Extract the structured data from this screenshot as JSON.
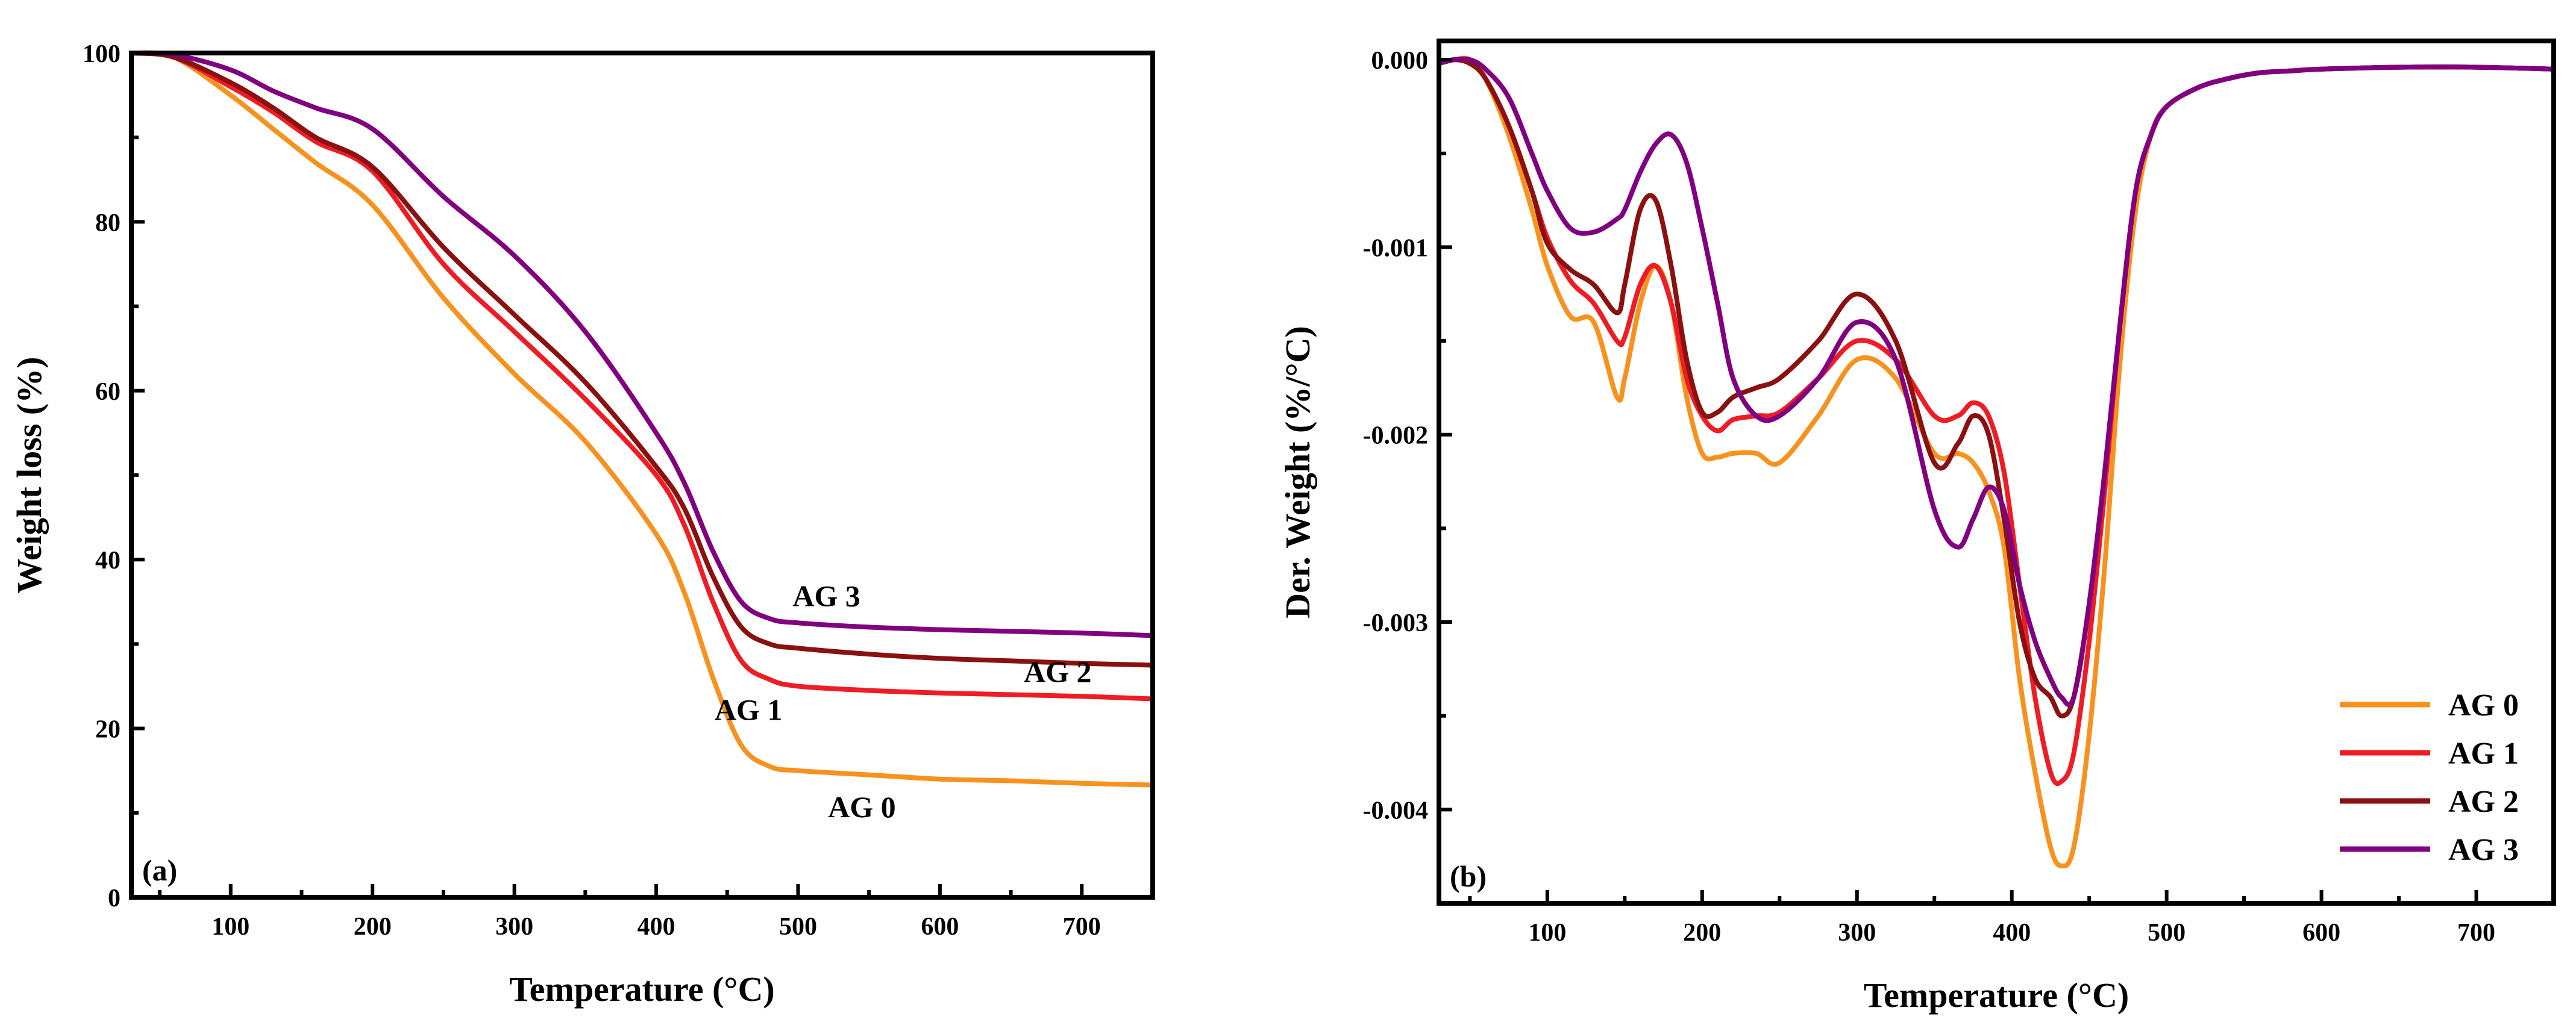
{
  "chart_data": [
    {
      "type": "line",
      "panel_label": "(a)",
      "xlabel": "Temperature (°C)",
      "ylabel": "Weight loss (%)",
      "xlim": [
        30,
        750
      ],
      "ylim": [
        0,
        100
      ],
      "xticks": [
        100,
        200,
        300,
        400,
        500,
        600,
        700
      ],
      "yticks": [
        0,
        20,
        40,
        60,
        80,
        100
      ],
      "series": [
        {
          "name": "AG 0",
          "color": "#F7921E",
          "x": [
            30,
            60,
            100,
            130,
            160,
            200,
            250,
            300,
            350,
            400,
            420,
            440,
            460,
            480,
            500,
            550,
            600,
            650,
            700,
            750
          ],
          "y": [
            100,
            99.5,
            95,
            91,
            87,
            82,
            71,
            62,
            54,
            43,
            36,
            26,
            18,
            15.5,
            15,
            14.5,
            14,
            13.8,
            13.5,
            13.3
          ]
        },
        {
          "name": "AG 1",
          "color": "#EE1C24",
          "x": [
            30,
            60,
            100,
            130,
            160,
            200,
            250,
            300,
            350,
            400,
            420,
            440,
            460,
            480,
            500,
            550,
            600,
            650,
            700,
            750
          ],
          "y": [
            100,
            99.5,
            96,
            93,
            89.5,
            86,
            75,
            67,
            59,
            50,
            44,
            35,
            28,
            25.8,
            25,
            24.5,
            24.2,
            24,
            23.8,
            23.5
          ]
        },
        {
          "name": "AG 2",
          "color": "#8B1010",
          "x": [
            30,
            60,
            100,
            130,
            160,
            200,
            250,
            300,
            350,
            400,
            420,
            440,
            460,
            480,
            500,
            550,
            600,
            650,
            700,
            750
          ],
          "y": [
            100,
            99.5,
            96.5,
            93.5,
            90,
            86.5,
            77,
            69,
            61,
            51,
            46,
            38,
            32,
            30,
            29.5,
            28.8,
            28.3,
            28,
            27.7,
            27.5
          ]
        },
        {
          "name": "AG 3",
          "color": "#800080",
          "x": [
            30,
            60,
            100,
            130,
            160,
            200,
            250,
            300,
            350,
            400,
            420,
            440,
            460,
            480,
            500,
            550,
            600,
            650,
            700,
            750
          ],
          "y": [
            100,
            99.8,
            98,
            95.5,
            93.5,
            91,
            83,
            76,
            67,
            55,
            49,
            41,
            35,
            33,
            32.5,
            32,
            31.7,
            31.5,
            31.3,
            31
          ]
        }
      ],
      "annotations": [
        {
          "text": "AG 3",
          "x": 520,
          "y": 34.5
        },
        {
          "text": "AG 2",
          "x": 683,
          "y": 25.5
        },
        {
          "text": "AG 1",
          "x": 465,
          "y": 21
        },
        {
          "text": "AG 0",
          "x": 545,
          "y": 9.5
        }
      ]
    },
    {
      "type": "line",
      "panel_label": "(b)",
      "xlabel": "Temperature (°C)",
      "ylabel": "Der. Weight (%/°C)",
      "xlim": [
        30,
        750
      ],
      "ylim": [
        -0.0045,
        0.0001
      ],
      "xticks": [
        100,
        200,
        300,
        400,
        500,
        600,
        700
      ],
      "yticks": [
        0.0,
        -0.001,
        -0.002,
        -0.003,
        -0.004
      ],
      "ytick_labels": [
        "0.000",
        "-0.001",
        "-0.002",
        "-0.003",
        "-0.004"
      ],
      "legend_position": "bottom-right",
      "series": [
        {
          "name": "AG 0",
          "color": "#F7921E",
          "x": [
            30,
            40,
            50,
            60,
            75,
            90,
            100,
            115,
            130,
            145,
            150,
            160,
            170,
            180,
            190,
            200,
            210,
            220,
            235,
            250,
            275,
            300,
            325,
            350,
            365,
            375,
            385,
            395,
            405,
            415,
            425,
            432,
            440,
            450,
            460,
            470,
            480,
            490,
            500,
            520,
            540,
            560,
            580,
            600,
            650,
            700,
            750
          ],
          "y": [
            -2e-05,
            0,
            0,
            -0.0001,
            -0.0004,
            -0.0008,
            -0.0011,
            -0.00137,
            -0.0014,
            -0.0018,
            -0.0017,
            -0.0013,
            -0.0011,
            -0.0013,
            -0.0018,
            -0.0021,
            -0.00212,
            -0.0021,
            -0.0021,
            -0.00215,
            -0.0019,
            -0.0016,
            -0.0017,
            -0.0021,
            -0.0021,
            -0.00215,
            -0.0023,
            -0.0026,
            -0.0033,
            -0.0038,
            -0.0042,
            -0.0043,
            -0.0042,
            -0.0036,
            -0.0027,
            -0.0016,
            -0.0008,
            -0.0004,
            -0.00025,
            -0.00015,
            -0.0001,
            -7e-05,
            -6e-05,
            -5e-05,
            -4e-05,
            -4e-05,
            -5e-05
          ]
        },
        {
          "name": "AG 1",
          "color": "#EE1C24",
          "x": [
            30,
            40,
            50,
            60,
            75,
            90,
            100,
            115,
            130,
            145,
            150,
            160,
            170,
            180,
            190,
            200,
            210,
            220,
            235,
            250,
            275,
            300,
            325,
            350,
            365,
            375,
            385,
            395,
            405,
            415,
            425,
            432,
            440,
            450,
            460,
            470,
            480,
            490,
            500,
            520,
            540,
            560,
            580,
            600,
            650,
            700,
            750
          ],
          "y": [
            -2e-05,
            0,
            -2e-05,
            -0.0001,
            -0.00035,
            -0.0007,
            -0.00095,
            -0.00118,
            -0.0013,
            -0.0015,
            -0.00148,
            -0.0012,
            -0.0011,
            -0.0013,
            -0.0017,
            -0.0019,
            -0.00198,
            -0.00192,
            -0.0019,
            -0.00188,
            -0.0017,
            -0.0015,
            -0.0016,
            -0.0019,
            -0.0019,
            -0.00183,
            -0.0019,
            -0.0022,
            -0.0028,
            -0.0034,
            -0.0038,
            -0.00385,
            -0.0037,
            -0.0031,
            -0.0023,
            -0.0014,
            -0.0007,
            -0.0004,
            -0.00025,
            -0.00015,
            -0.0001,
            -7e-05,
            -6e-05,
            -5e-05,
            -4e-05,
            -4e-05,
            -5e-05
          ]
        },
        {
          "name": "AG 2",
          "color": "#8B1010",
          "x": [
            30,
            40,
            50,
            60,
            75,
            90,
            100,
            115,
            130,
            145,
            150,
            160,
            170,
            180,
            190,
            200,
            210,
            220,
            235,
            250,
            275,
            300,
            325,
            350,
            365,
            375,
            385,
            395,
            405,
            415,
            425,
            432,
            440,
            450,
            460,
            470,
            480,
            490,
            500,
            520,
            540,
            560,
            580,
            600,
            650,
            700,
            750
          ],
          "y": [
            -2e-05,
            0,
            -2e-05,
            -0.0001,
            -0.00035,
            -0.0007,
            -0.00098,
            -0.00112,
            -0.0012,
            -0.00135,
            -0.0012,
            -0.0008,
            -0.00075,
            -0.0011,
            -0.0016,
            -0.00188,
            -0.00188,
            -0.0018,
            -0.00175,
            -0.0017,
            -0.0015,
            -0.00125,
            -0.0015,
            -0.00215,
            -0.00205,
            -0.0019,
            -0.002,
            -0.00245,
            -0.003,
            -0.0033,
            -0.0034,
            -0.0035,
            -0.0034,
            -0.0029,
            -0.0022,
            -0.0014,
            -0.0007,
            -0.0004,
            -0.00025,
            -0.00015,
            -0.0001,
            -7e-05,
            -6e-05,
            -5e-05,
            -4e-05,
            -4e-05,
            -5e-05
          ]
        },
        {
          "name": "AG 3",
          "color": "#800080",
          "x": [
            30,
            40,
            50,
            60,
            75,
            90,
            100,
            115,
            130,
            145,
            150,
            160,
            170,
            180,
            190,
            200,
            210,
            220,
            235,
            250,
            275,
            300,
            325,
            350,
            365,
            375,
            385,
            395,
            405,
            415,
            425,
            432,
            440,
            450,
            460,
            470,
            480,
            490,
            500,
            520,
            540,
            560,
            580,
            600,
            650,
            700,
            750
          ],
          "y": [
            -2e-05,
            0,
            0,
            -5e-05,
            -0.0002,
            -0.0005,
            -0.0007,
            -0.0009,
            -0.00092,
            -0.00085,
            -0.0008,
            -0.0006,
            -0.00045,
            -0.0004,
            -0.00055,
            -0.0009,
            -0.0013,
            -0.0017,
            -0.0019,
            -0.0019,
            -0.0017,
            -0.0014,
            -0.0016,
            -0.0024,
            -0.0026,
            -0.00245,
            -0.00228,
            -0.0024,
            -0.0028,
            -0.0031,
            -0.0033,
            -0.0034,
            -0.0034,
            -0.0029,
            -0.0022,
            -0.0014,
            -0.0007,
            -0.0004,
            -0.00025,
            -0.00015,
            -0.0001,
            -7e-05,
            -6e-05,
            -5e-05,
            -4e-05,
            -4e-05,
            -5e-05
          ]
        }
      ]
    }
  ]
}
